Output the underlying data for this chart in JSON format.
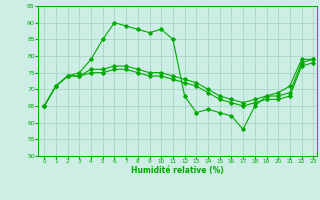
{
  "xlabel": "Humidité relative (%)",
  "xlim": [
    -0.5,
    23.3
  ],
  "ylim": [
    50,
    95
  ],
  "yticks": [
    50,
    55,
    60,
    65,
    70,
    75,
    80,
    85,
    90,
    95
  ],
  "xticks": [
    0,
    1,
    2,
    3,
    4,
    5,
    6,
    7,
    8,
    9,
    10,
    11,
    12,
    13,
    14,
    15,
    16,
    17,
    18,
    19,
    20,
    21,
    22,
    23
  ],
  "bg_color": "#cceee4",
  "grid_color": "#aad4c8",
  "line_color": "#00aa00",
  "line1": {
    "x": [
      0,
      1,
      2,
      3,
      4,
      5,
      6,
      7,
      8,
      9,
      10,
      11,
      12,
      13,
      14,
      15,
      16,
      17,
      18,
      19,
      20,
      21,
      22,
      23
    ],
    "y": [
      65,
      71,
      74,
      75,
      79,
      85,
      90,
      89,
      88,
      87,
      88,
      85,
      68,
      63,
      64,
      63,
      62,
      58,
      65,
      68,
      69,
      71,
      79,
      79
    ]
  },
  "line2": {
    "x": [
      0,
      1,
      2,
      3,
      4,
      5,
      6,
      7,
      8,
      9,
      10,
      11,
      12,
      13,
      14,
      15,
      16,
      17,
      18,
      19,
      20,
      21,
      22,
      23
    ],
    "y": [
      65,
      71,
      74,
      74,
      76,
      76,
      77,
      77,
      76,
      75,
      75,
      74,
      73,
      72,
      70,
      68,
      67,
      66,
      67,
      68,
      68,
      69,
      78,
      79
    ]
  },
  "line3": {
    "x": [
      0,
      1,
      2,
      3,
      4,
      5,
      6,
      7,
      8,
      9,
      10,
      11,
      12,
      13,
      14,
      15,
      16,
      17,
      18,
      19,
      20,
      21,
      22,
      23
    ],
    "y": [
      65,
      71,
      74,
      74,
      75,
      75,
      76,
      76,
      75,
      74,
      74,
      73,
      72,
      71,
      69,
      67,
      66,
      65,
      66,
      67,
      67,
      68,
      77,
      78
    ]
  }
}
